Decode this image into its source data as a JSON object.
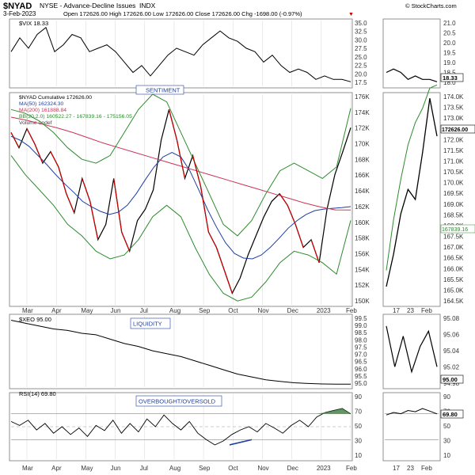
{
  "header": {
    "symbol": "$NYAD",
    "exchange": "NYSE - Advance-Decline Issues",
    "type": "INDX",
    "date": "3-Feb-2023",
    "ohlc": "Open 172626.00  High 172626.00  Low 172626.00  Close 172626.00  Chg -1698.00 (-0.97%)",
    "chg_arrow": "▼",
    "brand": "© StockCharts.com"
  },
  "panels": {
    "vix": {
      "legend": "$VIX 18.33",
      "last_label": "18.33",
      "ticks": [
        "35.0",
        "32.5",
        "30.0",
        "27.5",
        "25.0",
        "22.5",
        "20.0",
        "17.5"
      ],
      "zoom_ticks": [
        "21.0",
        "20.5",
        "20.0",
        "19.5",
        "19.0",
        "18.5",
        "18.0"
      ]
    },
    "nyad": {
      "annotation": "SENTIMENT",
      "legend": [
        "$NYAD Cumulative 172626.00",
        "MA(50) 162324.30",
        "MA(200) 161888.84",
        "BB(20,2.0) 160522.27 - 167839.16 - 175156.05",
        "Volume undef"
      ],
      "last_label": "172626.00",
      "ticks": [
        "176K",
        "174K",
        "172K",
        "170K",
        "168K",
        "166K",
        "164K",
        "162K",
        "160K",
        "158K",
        "156K",
        "154K",
        "152K",
        "150K"
      ],
      "zoom_ticks": [
        "174.0K",
        "173.5K",
        "173.0K",
        "172.5K",
        "172.0K",
        "171.5K",
        "171.0K",
        "170.5K",
        "170.0K",
        "169.5K",
        "169.0K",
        "168.5K",
        "168.0K",
        "167.5K",
        "167.0K",
        "166.5K",
        "166.0K",
        "165.5K",
        "165.0K",
        "164.5K"
      ],
      "bb_mid_label": "167839.16"
    },
    "xeo": {
      "annotation": "LIQUIDITY",
      "legend": "$XEO 95.00",
      "last_label": "95.00",
      "ticks": [
        "99.5",
        "99.0",
        "98.5",
        "98.0",
        "97.5",
        "97.0",
        "96.5",
        "96.0",
        "95.5",
        "95.0"
      ],
      "zoom_ticks": [
        "95.08",
        "95.06",
        "95.04",
        "95.02",
        "94.98"
      ]
    },
    "rsi": {
      "annotation": "OVERBOUGHT/OVERSOLD",
      "legend": "RSI(14) 69.80",
      "last_label": "69.80",
      "ticks": [
        "90",
        "70",
        "50",
        "30",
        "10"
      ]
    }
  },
  "x_labels": [
    "Mar",
    "Apr",
    "May",
    "Jun",
    "Jul",
    "Aug",
    "Sep",
    "Oct",
    "Nov",
    "Dec",
    "2023",
    "Feb"
  ],
  "zoom_x_labels": [
    "17",
    "23",
    "Feb"
  ],
  "colors": {
    "price": "#000000",
    "down": "#cc0000",
    "ma50": "#1f3fa0",
    "ma200": "#cc3355",
    "bb": "#2e8b2e",
    "annot": "#1f3fa0",
    "rsi_fill": "#3a7a3a"
  },
  "chart_data": [
    {
      "type": "line",
      "title": "$VIX",
      "series": [
        {
          "name": "$VIX",
          "values": [
            27,
            31,
            28,
            32,
            34,
            27,
            29,
            32,
            31,
            27,
            28,
            29,
            27,
            24,
            21,
            23,
            20,
            23,
            26,
            28,
            27,
            26,
            29,
            31,
            33,
            31,
            30,
            28,
            27,
            24,
            26,
            23,
            21,
            22,
            21,
            19,
            20,
            19,
            19,
            18.3
          ]
        }
      ],
      "ylim": [
        17,
        36
      ]
    },
    {
      "type": "line",
      "title": "$NYAD",
      "series": [
        {
          "name": "$NYAD Cumulative",
          "values": [
            172000,
            170000,
            172500,
            170500,
            168000,
            169500,
            167500,
            164000,
            161500,
            166000,
            163000,
            158000,
            160000,
            166000,
            159000,
            156500,
            160500,
            162000,
            164500,
            171000,
            175000,
            171000,
            166000,
            169000,
            165000,
            159000,
            157000,
            154000,
            151000,
            153000,
            156000,
            158500,
            161000,
            163000,
            164000,
            162500,
            160000,
            157000,
            158000,
            155000,
            162000,
            166500,
            169500,
            172626
          ]
        },
        {
          "name": "MA(50)",
          "values": [
            171500,
            171000,
            170200,
            169000,
            167800,
            166500,
            165300,
            164200,
            163000,
            162300,
            161700,
            161300,
            161600,
            162500,
            164000,
            165800,
            167500,
            168800,
            169400,
            168800,
            167000,
            164500,
            161900,
            159600,
            157600,
            156200,
            155600,
            155500,
            156000,
            157000,
            158200,
            159500,
            160500,
            161300,
            161800,
            162000,
            162100,
            162200,
            162324
          ]
        },
        {
          "name": "MA(200)",
          "values": [
            174000,
            173600,
            173100,
            172600,
            172000,
            171300,
            170600,
            170000,
            169400,
            168800,
            168200,
            167600,
            167000,
            166400,
            165800,
            165200,
            164600,
            164000,
            163400,
            162800,
            162300,
            161900,
            161888
          ]
        },
        {
          "name": "BB upper",
          "values": [
            175000,
            174500,
            173500,
            172000,
            170000,
            168500,
            168000,
            169000,
            172000,
            175000,
            177000,
            176000,
            172000,
            168000,
            164000,
            160000,
            158500,
            160500,
            164000,
            167000,
            168000,
            167000,
            166000,
            167500,
            175156
          ]
        },
        {
          "name": "BB lower",
          "values": [
            169000,
            166500,
            164500,
            162500,
            160000,
            158500,
            156500,
            155500,
            156000,
            158000,
            161000,
            162500,
            161000,
            157000,
            153500,
            151000,
            150000,
            150500,
            152500,
            155000,
            156500,
            156000,
            155000,
            153500,
            160522
          ]
        }
      ],
      "ylim": [
        149500,
        177000
      ]
    },
    {
      "type": "line",
      "title": "$XEO",
      "series": [
        {
          "name": "$XEO",
          "values": [
            99.4,
            99.2,
            99.0,
            98.8,
            98.7,
            98.5,
            98.4,
            98.1,
            97.8,
            97.6,
            97.3,
            97.1,
            96.9,
            96.6,
            96.3,
            96.0,
            95.7,
            95.5,
            95.3,
            95.2,
            95.1,
            95.05,
            95.02,
            95.0,
            95.0
          ]
        }
      ],
      "ylim": [
        94.8,
        99.7
      ]
    },
    {
      "type": "line",
      "title": "RSI(14)",
      "series": [
        {
          "name": "RSI(14)",
          "values": [
            58,
            52,
            60,
            45,
            55,
            40,
            50,
            38,
            48,
            35,
            52,
            44,
            60,
            40,
            55,
            42,
            62,
            50,
            68,
            55,
            45,
            58,
            40,
            30,
            22,
            28,
            38,
            45,
            50,
            42,
            55,
            48,
            40,
            52,
            60,
            50,
            65,
            72,
            75,
            78,
            69.8
          ]
        }
      ],
      "ylim": [
        0,
        100
      ]
    }
  ]
}
